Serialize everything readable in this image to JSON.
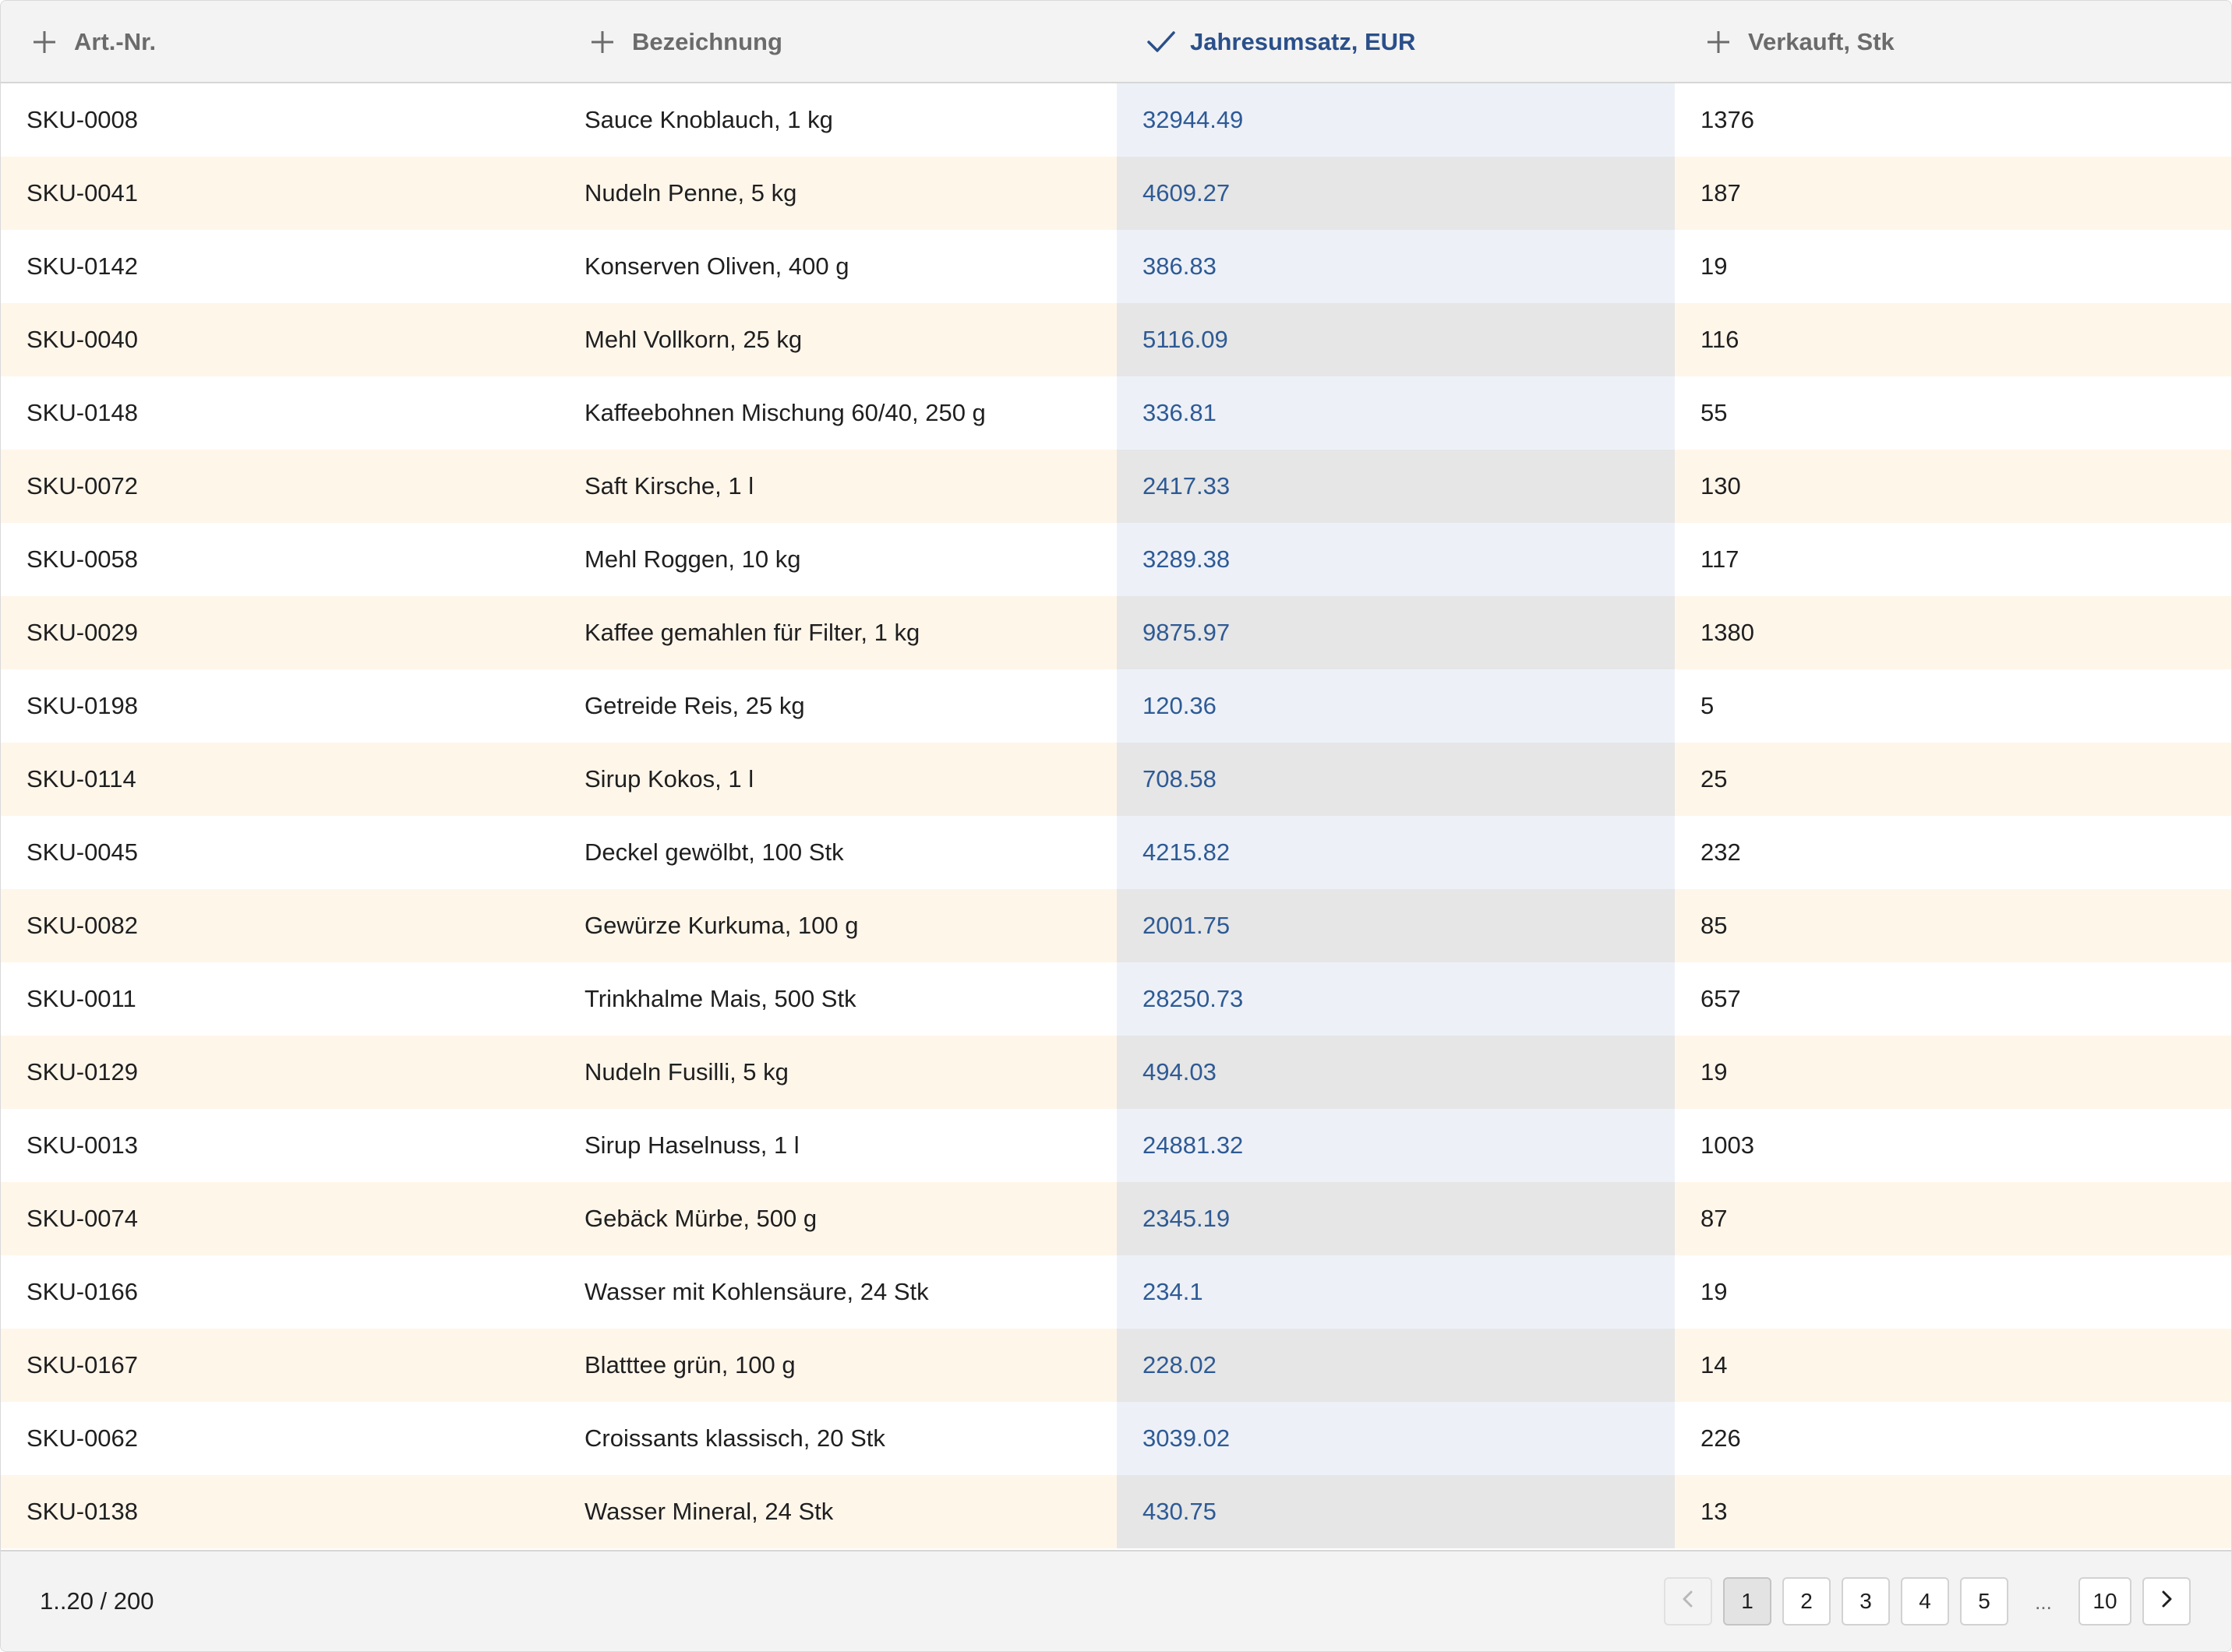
{
  "columns": [
    {
      "label": "Art.-Nr.",
      "icon": "plus-icon",
      "sorted": false
    },
    {
      "label": "Bezeichnung",
      "icon": "plus-icon",
      "sorted": false
    },
    {
      "label": "Jahresumsatz, EUR",
      "icon": "checkmark-icon",
      "sorted": true
    },
    {
      "label": "Verkauft, Stk",
      "icon": "plus-icon",
      "sorted": false
    }
  ],
  "rows": [
    {
      "sku": "SKU-0008",
      "name": "Sauce Knoblauch, 1 kg",
      "revenue": "32944.49",
      "sold": "1376"
    },
    {
      "sku": "SKU-0041",
      "name": "Nudeln Penne, 5 kg",
      "revenue": "4609.27",
      "sold": "187"
    },
    {
      "sku": "SKU-0142",
      "name": "Konserven Oliven, 400 g",
      "revenue": "386.83",
      "sold": "19"
    },
    {
      "sku": "SKU-0040",
      "name": "Mehl Vollkorn, 25 kg",
      "revenue": "5116.09",
      "sold": "116"
    },
    {
      "sku": "SKU-0148",
      "name": "Kaffeebohnen Mischung 60/40, 250 g",
      "revenue": "336.81",
      "sold": "55"
    },
    {
      "sku": "SKU-0072",
      "name": "Saft Kirsche, 1 l",
      "revenue": "2417.33",
      "sold": "130"
    },
    {
      "sku": "SKU-0058",
      "name": "Mehl Roggen, 10 kg",
      "revenue": "3289.38",
      "sold": "117"
    },
    {
      "sku": "SKU-0029",
      "name": "Kaffee gemahlen für Filter, 1 kg",
      "revenue": "9875.97",
      "sold": "1380"
    },
    {
      "sku": "SKU-0198",
      "name": "Getreide Reis, 25 kg",
      "revenue": "120.36",
      "sold": "5"
    },
    {
      "sku": "SKU-0114",
      "name": "Sirup Kokos, 1 l",
      "revenue": "708.58",
      "sold": "25"
    },
    {
      "sku": "SKU-0045",
      "name": "Deckel gewölbt, 100 Stk",
      "revenue": "4215.82",
      "sold": "232"
    },
    {
      "sku": "SKU-0082",
      "name": "Gewürze Kurkuma, 100 g",
      "revenue": "2001.75",
      "sold": "85"
    },
    {
      "sku": "SKU-0011",
      "name": "Trinkhalme Mais, 500 Stk",
      "revenue": "28250.73",
      "sold": "657"
    },
    {
      "sku": "SKU-0129",
      "name": "Nudeln Fusilli, 5 kg",
      "revenue": "494.03",
      "sold": "19"
    },
    {
      "sku": "SKU-0013",
      "name": "Sirup Haselnuss, 1 l",
      "revenue": "24881.32",
      "sold": "1003"
    },
    {
      "sku": "SKU-0074",
      "name": "Gebäck Mürbe, 500 g",
      "revenue": "2345.19",
      "sold": "87"
    },
    {
      "sku": "SKU-0166",
      "name": "Wasser mit Kohlensäure, 24 Stk",
      "revenue": "234.1",
      "sold": "19"
    },
    {
      "sku": "SKU-0167",
      "name": "Blatttee grün, 100 g",
      "revenue": "228.02",
      "sold": "14"
    },
    {
      "sku": "SKU-0062",
      "name": "Croissants klassisch, 20 Stk",
      "revenue": "3039.02",
      "sold": "226"
    },
    {
      "sku": "SKU-0138",
      "name": "Wasser Mineral, 24 Stk",
      "revenue": "430.75",
      "sold": "13"
    }
  ],
  "footer": {
    "range": "1..20 / 200",
    "pages": [
      "1",
      "2",
      "3",
      "4",
      "5"
    ],
    "current_page": "1",
    "ellipsis": "...",
    "last_page": "10",
    "prev_icon": "chevron-left-icon",
    "next_icon": "chevron-right-icon"
  },
  "colors": {
    "header_bg": "#f3f3f3",
    "sorted_header_text": "#2a4f8a",
    "sorted_cell_text": "#2e5a95",
    "odd_row_bg": "#fff6ea",
    "sorted_even_bg": "#edf1f7",
    "sorted_odd_bg": "#e6e6e6"
  }
}
